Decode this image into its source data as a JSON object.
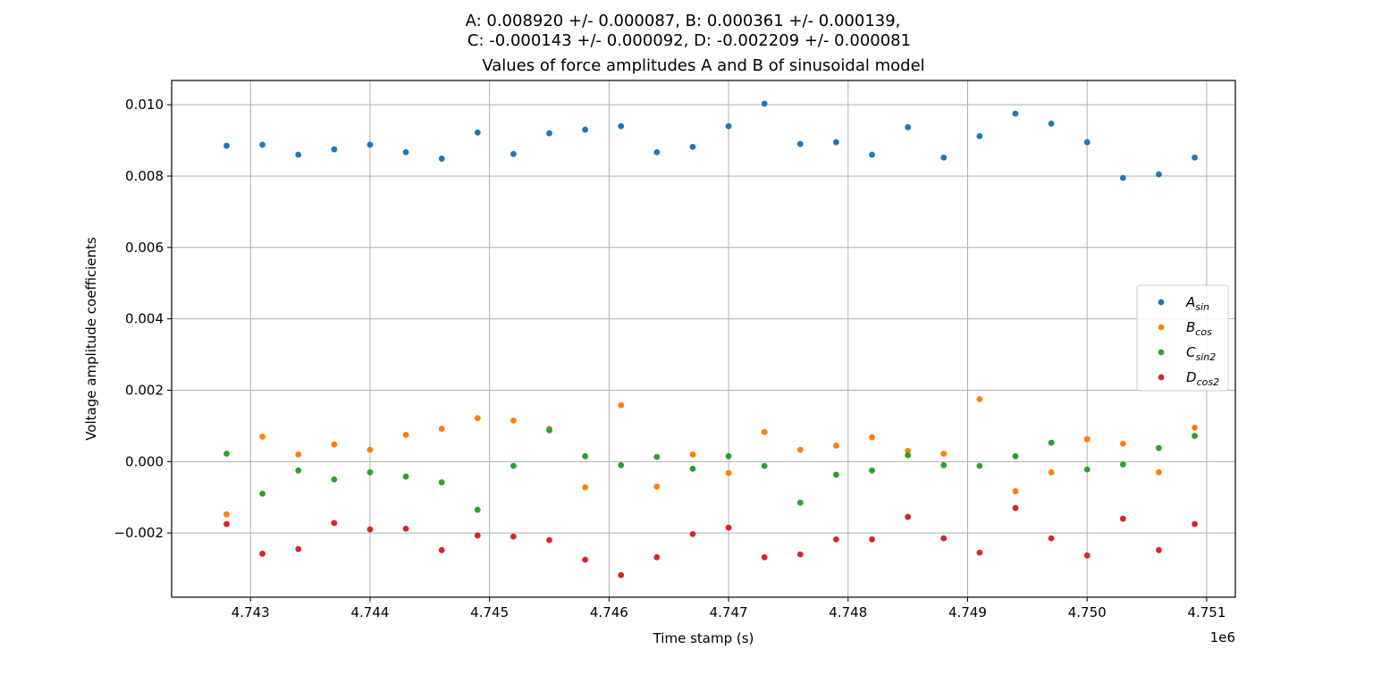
{
  "chart_data": {
    "type": "scatter",
    "suptitle_lines": [
      "A: 0.008920 +/- 0.000087, B: 0.000361 +/- 0.000139,",
      "C: -0.000143 +/- 0.000092, D: -0.002209 +/- 0.000081"
    ],
    "title": "Values of force amplitudes A and B of sinusoidal model",
    "xlabel": "Time stamp (s)",
    "ylabel": "Voltage amplitude coefficients",
    "x_offset_label": "1e6",
    "xlim": [
      4.74234,
      4.75124
    ],
    "ylim": [
      -0.0038,
      0.01068
    ],
    "x_ticks": [
      4.743,
      4.744,
      4.745,
      4.746,
      4.747,
      4.748,
      4.749,
      4.75,
      4.751
    ],
    "x_tick_labels": [
      "4.743",
      "4.744",
      "4.745",
      "4.746",
      "4.747",
      "4.748",
      "4.749",
      "4.750",
      "4.751"
    ],
    "y_ticks": [
      -0.002,
      0.0,
      0.002,
      0.004,
      0.006,
      0.008,
      0.01
    ],
    "y_tick_labels": [
      "−0.002",
      "0.000",
      "0.002",
      "0.004",
      "0.006",
      "0.008",
      "0.010"
    ],
    "grid": true,
    "legend_position": "center-right",
    "x": [
      4.7428,
      4.7431,
      4.7434,
      4.7437,
      4.744,
      4.7443,
      4.7446,
      4.7449,
      4.7452,
      4.7455,
      4.7458,
      4.7461,
      4.7464,
      4.7467,
      4.747,
      4.7473,
      4.7476,
      4.7479,
      4.7482,
      4.7485,
      4.7488,
      4.7491,
      4.7494,
      4.7497,
      4.75,
      4.7503,
      4.7506,
      4.7509
    ],
    "series": [
      {
        "name": "A",
        "legend_sub": "sin",
        "color": "#1f77b4",
        "values": [
          0.00885,
          0.00888,
          0.0086,
          0.00875,
          0.00888,
          0.00867,
          0.00849,
          0.00922,
          0.00862,
          0.0092,
          0.0093,
          0.0094,
          0.00867,
          0.00882,
          0.0094,
          0.01003,
          0.0089,
          0.00895,
          0.0086,
          0.00937,
          0.00852,
          0.00912,
          0.00975,
          0.00947,
          0.00895,
          0.00795,
          0.00805,
          0.00852
        ]
      },
      {
        "name": "B",
        "legend_sub": "cos",
        "color": "#ff7f0e",
        "values": [
          -0.00148,
          0.0007,
          0.0002,
          0.00048,
          0.00033,
          0.00075,
          0.00092,
          0.00122,
          0.00115,
          0.00092,
          -0.00072,
          0.00158,
          -0.0007,
          0.0002,
          -0.00032,
          0.00083,
          0.00033,
          0.00045,
          0.00068,
          0.0003,
          0.00022,
          0.00175,
          -0.00083,
          -0.0003,
          0.00063,
          0.0005,
          -0.0003,
          0.00095
        ]
      },
      {
        "name": "C",
        "legend_sub": "sin2",
        "color": "#2ca02c",
        "values": [
          0.00022,
          -0.0009,
          -0.00025,
          -0.0005,
          -0.0003,
          -0.00042,
          -0.00058,
          -0.00135,
          -0.00012,
          0.00088,
          0.00015,
          -0.0001,
          0.00013,
          -0.0002,
          0.00015,
          -0.00012,
          -0.00115,
          -0.00037,
          -0.00025,
          0.00018,
          -0.0001,
          -0.00012,
          0.00015,
          0.00053,
          -0.00022,
          -8e-05,
          0.00038,
          0.00072
        ]
      },
      {
        "name": "D",
        "legend_sub": "cos2",
        "color": "#d62728",
        "values": [
          -0.00175,
          -0.00258,
          -0.00245,
          -0.00172,
          -0.0019,
          -0.00188,
          -0.00248,
          -0.00207,
          -0.0021,
          -0.0022,
          -0.00275,
          -0.00318,
          -0.00268,
          -0.00203,
          -0.00185,
          -0.00268,
          -0.0026,
          -0.00218,
          -0.00218,
          -0.00155,
          -0.00215,
          -0.00255,
          -0.0013,
          -0.00215,
          -0.00263,
          -0.0016,
          -0.00248,
          -0.00175
        ]
      }
    ]
  }
}
